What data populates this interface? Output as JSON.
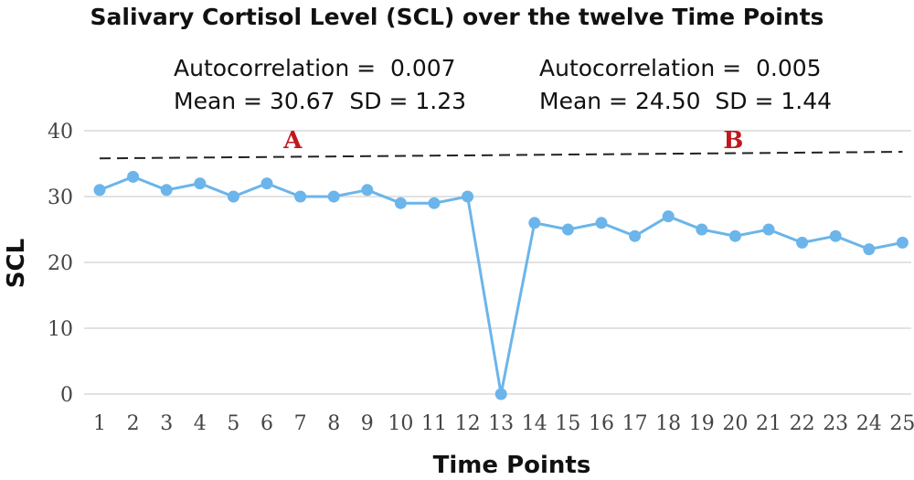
{
  "chart_data": {
    "type": "line",
    "title": "Salivary Cortisol Level (SCL) over the twelve Time Points",
    "xlabel": "Time Points",
    "ylabel": "SCL",
    "ylim": [
      0,
      40
    ],
    "yticks": [
      0,
      10,
      20,
      30,
      40
    ],
    "categories": [
      "1",
      "2",
      "3",
      "4",
      "5",
      "6",
      "7",
      "8",
      "9",
      "10",
      "11",
      "12",
      "13",
      "14",
      "15",
      "16",
      "17",
      "18",
      "19",
      "20",
      "21",
      "22",
      "23",
      "24",
      "25"
    ],
    "series": [
      {
        "values": [
          31,
          33,
          31,
          32,
          30,
          32,
          30,
          30,
          31,
          29,
          29,
          30,
          0,
          26,
          25,
          26,
          24,
          27,
          25,
          24,
          25,
          23,
          24,
          22,
          23
        ],
        "color": "#6bb5ea"
      }
    ],
    "reference_line": {
      "style": "dashed",
      "color": "#222222",
      "y_start": 35.8,
      "y_end": 36.8
    },
    "phase_labels": [
      {
        "label": "A",
        "color": "#c0181c"
      },
      {
        "label": "B",
        "color": "#c0181c"
      }
    ],
    "annotations": {
      "a_autocorrelation": "Autocorrelation =  0.007",
      "a_mean_sd": "Mean = 30.67  SD = 1.23",
      "b_autocorrelation": "Autocorrelation =  0.005",
      "b_mean_sd": "Mean = 24.50  SD = 1.44"
    },
    "grid": true,
    "gridline_color": "#d9d9d9"
  }
}
